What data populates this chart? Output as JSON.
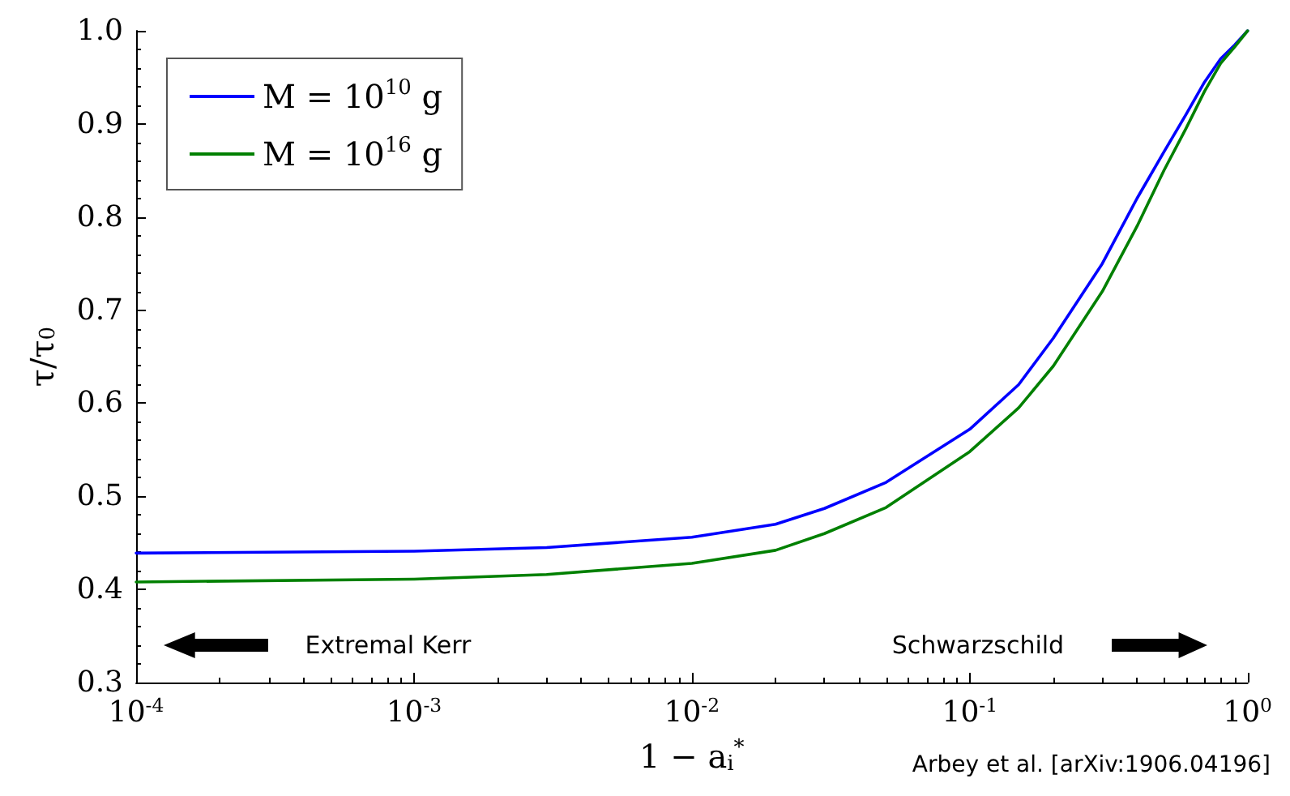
{
  "chart_data": {
    "type": "line",
    "xlabel": "1 − a$_{i}$$^{*}$",
    "ylabel": "τ/τ$_{0}$",
    "log": "x",
    "xlim": [
      0.0001,
      1
    ],
    "ylim": [
      0.3,
      1
    ],
    "xticks": [
      {
        "value": 0.0001,
        "label": "10$^{-4}$"
      },
      {
        "value": 0.001,
        "label": "10$^{-3}$"
      },
      {
        "value": 0.01,
        "label": "10$^{-2}$"
      },
      {
        "value": 0.1,
        "label": "10$^{-1}$"
      },
      {
        "value": 1,
        "label": "10$^{0}$"
      }
    ],
    "yticks": [
      0.3,
      0.4,
      0.5,
      0.6,
      0.7,
      0.8,
      0.9,
      {
        "value": 1,
        "label": "1.0"
      }
    ],
    "x": [
      0.0001,
      0.001,
      0.003,
      0.01,
      0.02,
      0.03,
      0.05,
      0.1,
      0.15,
      0.2,
      0.3,
      0.4,
      0.5,
      0.6,
      0.7,
      0.8,
      0.9,
      1
    ],
    "series": [
      {
        "name": "M = 10$^{10}$ g",
        "color": "#0000ff",
        "values": [
          0.439,
          0.441,
          0.445,
          0.456,
          0.47,
          0.487,
          0.515,
          0.572,
          0.62,
          0.67,
          0.75,
          0.82,
          0.87,
          0.91,
          0.945,
          0.97,
          0.985,
          1.0
        ]
      },
      {
        "name": "M = 10$^{16}$ g",
        "color": "#008000",
        "values": [
          0.408,
          0.411,
          0.416,
          0.428,
          0.442,
          0.46,
          0.488,
          0.548,
          0.595,
          0.64,
          0.72,
          0.79,
          0.85,
          0.895,
          0.935,
          0.965,
          0.983,
          1.0
        ]
      }
    ],
    "legend": "top left",
    "grid": false,
    "marker": "none",
    "line_style": "solid",
    "annotations": [
      "Extremal Kerr",
      "Schwarzschild",
      "Arbey et al. [arXiv:1906.04196]"
    ]
  }
}
